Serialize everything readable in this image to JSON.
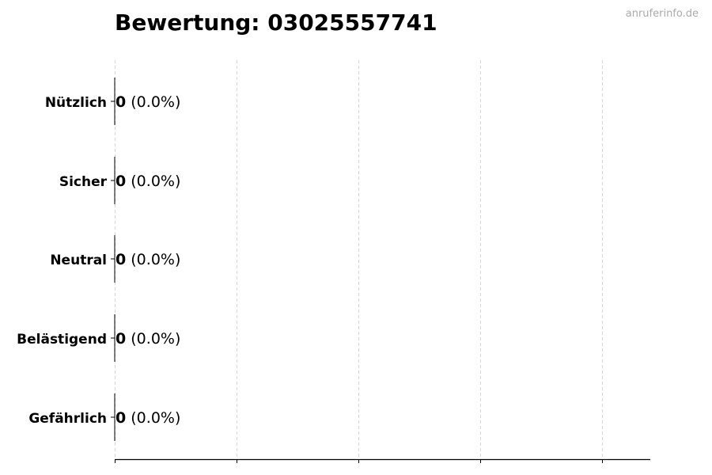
{
  "title": "Bewertung: 03025557741",
  "watermark": "anruferinfo.de",
  "chart_data": {
    "type": "bar",
    "orientation": "horizontal",
    "title": "Bewertung: 03025557741",
    "categories": [
      "Nützlich",
      "Sicher",
      "Neutral",
      "Belästigend",
      "Gefährlich"
    ],
    "values": [
      0,
      0,
      0,
      0,
      0
    ],
    "data_labels": [
      {
        "count": "0",
        "pct": "(0.0%)"
      },
      {
        "count": "0",
        "pct": "(0.0%)"
      },
      {
        "count": "0",
        "pct": "(0.0%)"
      },
      {
        "count": "0",
        "pct": "(0.0%)"
      },
      {
        "count": "0",
        "pct": "(0.0%)"
      }
    ],
    "xlabel": "",
    "ylabel": "",
    "x_ticks_count": 5,
    "x_tick_labels_shown": false,
    "grid": "x, dashed",
    "bar_edge_color": "#000000"
  }
}
